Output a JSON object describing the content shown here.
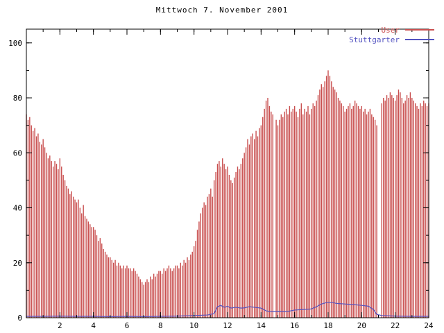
{
  "chart_data": {
    "type": "bar",
    "title": "Mittwoch 7. November 2001",
    "xlabel": "",
    "ylabel": "",
    "xlim": [
      0,
      24
    ],
    "ylim": [
      0,
      105
    ],
    "x_ticks": [
      2,
      4,
      6,
      8,
      10,
      12,
      14,
      16,
      18,
      20,
      22,
      24
    ],
    "x_minor_step": 1,
    "y_ticks": [
      0,
      20,
      40,
      60,
      80,
      100
    ],
    "y_minor_step": 10,
    "grid": false,
    "legend_position": "top-right",
    "series": [
      {
        "name": "User",
        "type": "impulses",
        "color": "#c94f4f",
        "x_start": 0,
        "x_step": 0.1,
        "values": [
          74,
          72,
          73,
          70,
          68,
          69,
          66,
          67,
          64,
          63,
          65,
          62,
          60,
          58,
          59,
          57,
          55,
          57,
          56,
          54,
          58,
          55,
          52,
          50,
          48,
          47,
          45,
          46,
          44,
          43,
          42,
          43,
          40,
          38,
          41,
          37,
          36,
          35,
          34,
          33,
          33,
          32,
          30,
          28,
          29,
          27,
          25,
          24,
          23,
          22,
          22,
          21,
          20,
          21,
          19,
          20,
          19,
          18,
          19,
          18,
          19,
          18,
          18,
          17,
          18,
          17,
          16,
          15,
          14,
          13,
          12,
          13,
          14,
          13,
          15,
          14,
          16,
          15,
          16,
          17,
          17,
          16,
          18,
          17,
          18,
          19,
          18,
          17,
          18,
          19,
          19,
          18,
          20,
          19,
          21,
          20,
          22,
          21,
          23,
          24,
          26,
          28,
          32,
          35,
          38,
          40,
          42,
          41,
          44,
          45,
          47,
          44,
          50,
          53,
          56,
          57,
          55,
          58,
          56,
          54,
          55,
          52,
          50,
          49,
          51,
          53,
          55,
          54,
          56,
          58,
          60,
          62,
          65,
          63,
          66,
          67,
          65,
          68,
          66,
          69,
          70,
          73,
          76,
          79,
          80,
          77,
          75,
          74,
          null,
          72,
          70,
          72,
          74,
          73,
          75,
          76,
          74,
          77,
          75,
          76,
          77,
          75,
          73,
          76,
          78,
          74,
          76,
          75,
          77,
          74,
          76,
          78,
          77,
          79,
          81,
          83,
          85,
          84,
          86,
          88,
          90,
          88,
          86,
          84,
          83,
          82,
          80,
          79,
          78,
          77,
          75,
          76,
          77,
          78,
          76,
          77,
          79,
          78,
          77,
          76,
          77,
          75,
          76,
          74,
          75,
          76,
          74,
          73,
          72,
          70,
          null,
          null,
          78,
          80,
          79,
          81,
          80,
          82,
          81,
          80,
          79,
          81,
          83,
          82,
          80,
          78,
          79,
          81,
          80,
          82,
          80,
          79,
          78,
          77,
          76,
          78,
          77,
          79,
          78,
          77,
          78
        ]
      },
      {
        "name": "Stuttgarter",
        "type": "line",
        "color": "#5252c0",
        "points": [
          [
            0,
            0.5
          ],
          [
            1,
            0.5
          ],
          [
            2,
            0.6
          ],
          [
            3,
            0.5
          ],
          [
            4,
            0.5
          ],
          [
            5,
            0.4
          ],
          [
            6,
            0.5
          ],
          [
            7,
            0.4
          ],
          [
            8,
            0.5
          ],
          [
            9,
            0.6
          ],
          [
            10,
            0.8
          ],
          [
            10.8,
            1.0
          ],
          [
            11.2,
            1.5
          ],
          [
            11.4,
            4.0
          ],
          [
            11.6,
            4.5
          ],
          [
            11.8,
            3.8
          ],
          [
            12,
            4.2
          ],
          [
            12.2,
            3.5
          ],
          [
            12.5,
            3.8
          ],
          [
            12.8,
            3.5
          ],
          [
            13,
            3.6
          ],
          [
            13.3,
            4.0
          ],
          [
            13.6,
            3.8
          ],
          [
            14,
            3.5
          ],
          [
            14.3,
            2.5
          ],
          [
            14.6,
            2.2
          ],
          [
            15,
            2.3
          ],
          [
            15.5,
            2.2
          ],
          [
            16,
            2.8
          ],
          [
            16.5,
            3.0
          ],
          [
            17,
            3.2
          ],
          [
            17.3,
            4.0
          ],
          [
            17.6,
            5.0
          ],
          [
            17.9,
            5.5
          ],
          [
            18.2,
            5.6
          ],
          [
            18.5,
            5.2
          ],
          [
            19,
            5.0
          ],
          [
            19.5,
            4.8
          ],
          [
            20,
            4.5
          ],
          [
            20.4,
            4.2
          ],
          [
            20.7,
            3.0
          ],
          [
            20.9,
            1.2
          ],
          [
            21.2,
            0.8
          ],
          [
            22,
            0.6
          ],
          [
            23,
            0.5
          ],
          [
            24,
            0.5
          ]
        ]
      }
    ]
  }
}
